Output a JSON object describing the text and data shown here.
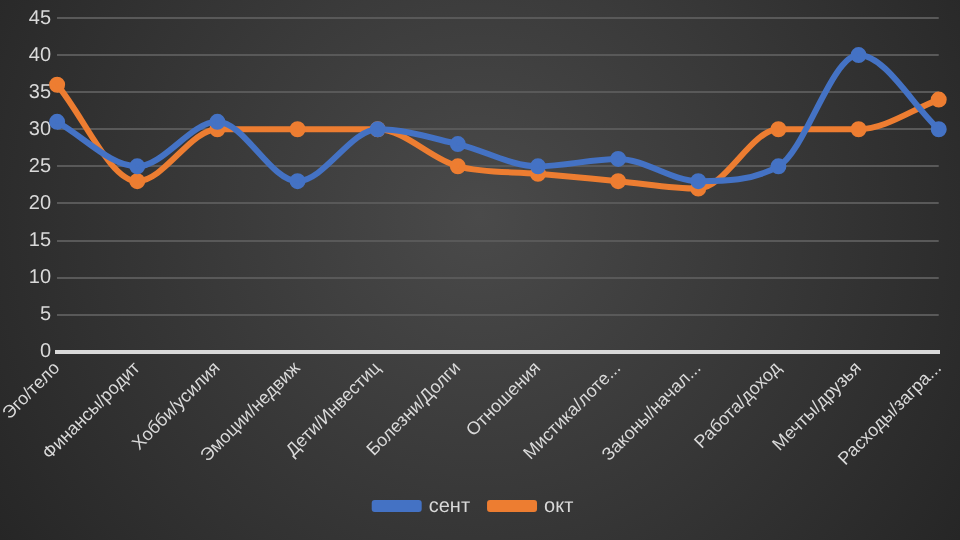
{
  "chart_data": {
    "type": "line",
    "categories": [
      "Эго/тело",
      "Финансы/родит",
      "Хобби/усилия",
      "Эмоции/недвиж",
      "Дети/Инвестиц",
      "Болезни/Долги",
      "Отношения",
      "Мистика/лоте...",
      "Законы/начал...",
      "Работа/доход",
      "Мечты/друзья",
      "Расходы/загра..."
    ],
    "series": [
      {
        "name": "сент",
        "color": "#4472c4",
        "values": [
          31,
          25,
          31,
          23,
          30,
          28,
          25,
          26,
          23,
          25,
          40,
          30
        ]
      },
      {
        "name": "окт",
        "color": "#ed7d31",
        "values": [
          36,
          23,
          30,
          30,
          30,
          25,
          24,
          23,
          22,
          30,
          30,
          34
        ]
      }
    ],
    "ylim": [
      0,
      45
    ],
    "yticks": [
      0,
      5,
      10,
      15,
      20,
      25,
      30,
      35,
      40,
      45
    ],
    "grid": "y",
    "legend": "bottom",
    "marker": "circle",
    "line_style": "solid"
  }
}
